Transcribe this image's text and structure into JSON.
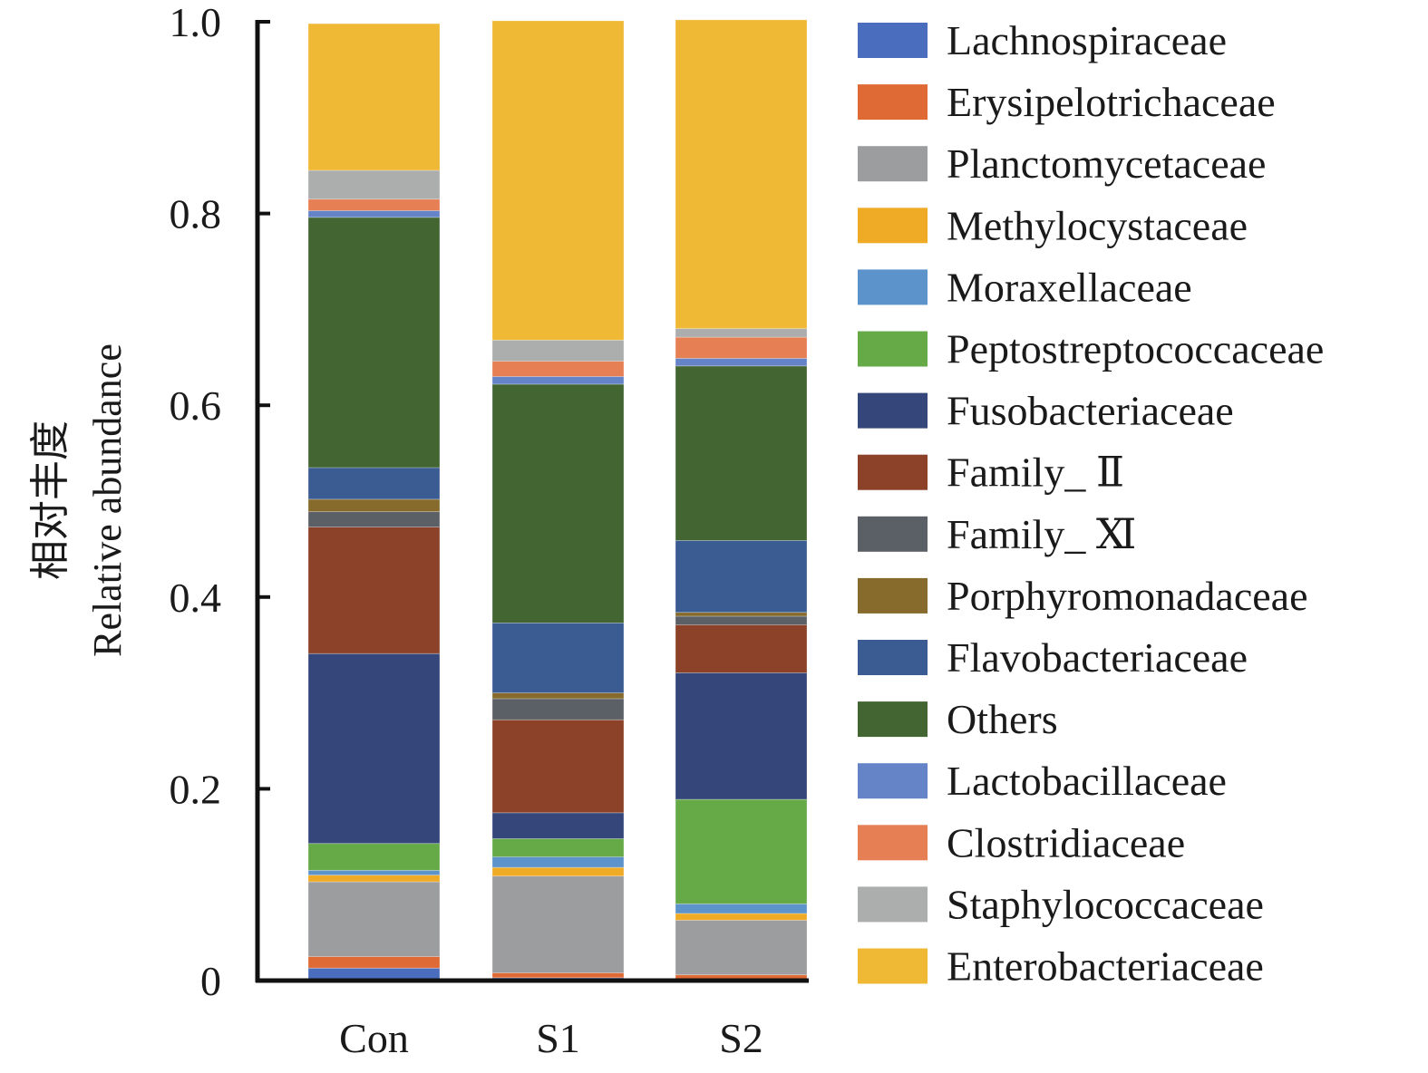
{
  "chart_data": {
    "type": "bar",
    "stacked": true,
    "title": "",
    "xlabel": "",
    "ylabel_lines": [
      "相对丰度",
      "Relative abundance"
    ],
    "ylim": [
      0,
      1.0
    ],
    "yticks": [
      "0",
      "0.2",
      "0.4",
      "0.6",
      "0.8",
      "1.0"
    ],
    "ytick_values": [
      0,
      0.2,
      0.4,
      0.6,
      0.8,
      1.0
    ],
    "grid": false,
    "legend_position": "right",
    "categories": [
      "Con",
      "S1",
      "S2"
    ],
    "series": [
      {
        "name": "Lachnospiraceae",
        "color": "#4a6ebd",
        "values": [
          0.013,
          0.003,
          0.002
        ]
      },
      {
        "name": "Erysipelotrichaceae",
        "color": "#e06a35",
        "values": [
          0.012,
          0.005,
          0.004
        ]
      },
      {
        "name": "Planctomycetaceae",
        "color": "#9c9d9f",
        "values": [
          0.078,
          0.101,
          0.057
        ]
      },
      {
        "name": "Methylocystaceae",
        "color": "#f0ab26",
        "values": [
          0.007,
          0.009,
          0.007
        ]
      },
      {
        "name": "Moraxellaceae",
        "color": "#5d93cb",
        "values": [
          0.005,
          0.011,
          0.01
        ]
      },
      {
        "name": "Peptostreptococcaceae",
        "color": "#66aa48",
        "values": [
          0.028,
          0.019,
          0.109
        ]
      },
      {
        "name": "Fusobacteriaceae",
        "color": "#35477a",
        "values": [
          0.198,
          0.027,
          0.132
        ]
      },
      {
        "name": "Family_ Ⅱ",
        "color": "#8b4229",
        "values": [
          0.132,
          0.097,
          0.05
        ]
      },
      {
        "name": "Family_ Ⅺ",
        "color": "#5b5f66",
        "values": [
          0.016,
          0.022,
          0.009
        ]
      },
      {
        "name": "Porphyromonadaceae",
        "color": "#876b2c",
        "values": [
          0.013,
          0.006,
          0.004
        ]
      },
      {
        "name": "Flavobacteriaceae",
        "color": "#3a5c92",
        "values": [
          0.033,
          0.073,
          0.075
        ]
      },
      {
        "name": "Others",
        "color": "#436532",
        "values": [
          0.261,
          0.249,
          0.182
        ]
      },
      {
        "name": "Lactobacillaceae",
        "color": "#6584c8",
        "values": [
          0.007,
          0.008,
          0.008
        ]
      },
      {
        "name": "Clostridiaceae",
        "color": "#e77f55",
        "values": [
          0.012,
          0.016,
          0.022
        ]
      },
      {
        "name": "Staphylococcaceae",
        "color": "#acadad",
        "values": [
          0.03,
          0.022,
          0.009
        ]
      },
      {
        "name": "Enterobacteriaceae",
        "color": "#f0b935",
        "values": [
          0.153,
          0.333,
          0.322
        ]
      }
    ]
  }
}
